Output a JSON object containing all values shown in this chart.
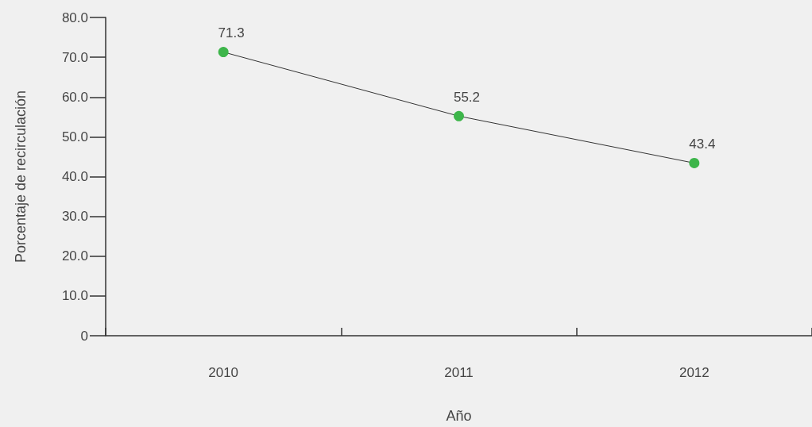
{
  "chart_data": {
    "type": "line",
    "xlabel": "Año",
    "ylabel": "Porcentaje de recirculación",
    "categories": [
      "2010",
      "2011",
      "2012"
    ],
    "series": [
      {
        "color": "#3db54a",
        "values": [
          71.3,
          55.2,
          43.4
        ]
      }
    ],
    "ylim": [
      0,
      80
    ],
    "yticks": [
      {
        "value": 0,
        "label": "0"
      },
      {
        "value": 10,
        "label": "10.0"
      },
      {
        "value": 20,
        "label": "20.0"
      },
      {
        "value": 30,
        "label": "30.0"
      },
      {
        "value": 40,
        "label": "40.0"
      },
      {
        "value": 50,
        "label": "50.0"
      },
      {
        "value": 60,
        "label": "60.0"
      },
      {
        "value": 70,
        "label": "70.0"
      },
      {
        "value": 80,
        "label": "80.0"
      }
    ],
    "data_labels": true,
    "marker": "circle",
    "line_style": "solid",
    "grid": false
  }
}
